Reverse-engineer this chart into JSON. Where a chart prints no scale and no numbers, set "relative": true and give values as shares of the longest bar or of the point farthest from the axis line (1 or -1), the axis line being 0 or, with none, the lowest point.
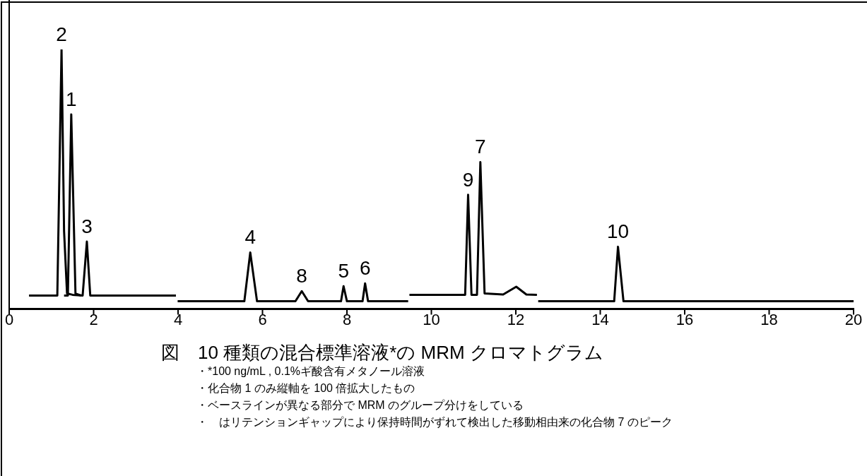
{
  "chart_data": {
    "type": "line",
    "title": "図　10 種類の混合標準溶液*の MRM クロマトグラム",
    "relative": true,
    "xlim": [
      0,
      20
    ],
    "xticks": [
      0,
      2,
      4,
      6,
      8,
      10,
      12,
      14,
      16,
      18,
      20
    ],
    "tick_labels": "x",
    "grid": false,
    "legend": false,
    "marker": "none",
    "line_style": "solid",
    "series": [
      {
        "color": "#000000",
        "x": [
          0.47,
          1.0,
          1.14,
          1.24,
          1.3,
          1.37,
          1.5,
          1.74,
          1.84,
          1.92,
          2.5,
          3.95
        ],
        "values": [
          0.052,
          0.052,
          0.052,
          1.0,
          0.3,
          0.06,
          0.055,
          0.052,
          0.26,
          0.052,
          0.052,
          0.052
        ]
      },
      {
        "color": "#000000",
        "x": [
          1.3,
          1.39,
          1.47,
          1.57,
          1.7
        ],
        "values": [
          0.052,
          0.052,
          0.75,
          0.06,
          0.052
        ]
      },
      {
        "color": "#000000",
        "x": [
          3.99,
          5.57,
          5.71,
          5.87,
          6.78,
          6.93,
          7.08,
          7.86,
          7.92,
          8.0,
          8.37,
          8.43,
          8.5,
          9.45
        ],
        "values": [
          0.03,
          0.03,
          0.218,
          0.03,
          0.03,
          0.069,
          0.03,
          0.03,
          0.088,
          0.03,
          0.03,
          0.099,
          0.03,
          0.03
        ]
      },
      {
        "color": "#000000",
        "x": [
          9.48,
          10.8,
          10.87,
          10.95,
          11.08,
          11.16,
          11.26,
          11.7,
          12.01,
          12.25,
          12.5
        ],
        "values": [
          0.055,
          0.055,
          0.44,
          0.055,
          0.055,
          0.566,
          0.06,
          0.056,
          0.086,
          0.056,
          0.055
        ]
      },
      {
        "color": "#000000",
        "x": [
          12.53,
          14.33,
          14.42,
          14.55,
          20
        ],
        "values": [
          0.03,
          0.03,
          0.24,
          0.03,
          0.03
        ]
      }
    ],
    "annotations": [
      {
        "text": "2",
        "x": 1.24,
        "y": 1.0
      },
      {
        "text": "1",
        "x": 1.47,
        "y": 0.75
      },
      {
        "text": "3",
        "x": 1.84,
        "y": 0.26
      },
      {
        "text": "4",
        "x": 5.71,
        "y": 0.218
      },
      {
        "text": "8",
        "x": 6.93,
        "y": 0.069
      },
      {
        "text": "5",
        "x": 7.92,
        "y": 0.088
      },
      {
        "text": "6",
        "x": 8.43,
        "y": 0.099
      },
      {
        "text": "9",
        "x": 10.87,
        "y": 0.44
      },
      {
        "text": "7",
        "x": 11.16,
        "y": 0.566
      },
      {
        "text": "10",
        "x": 14.42,
        "y": 0.24
      },
      "・*100 ng/mL , 0.1%ギ酸含有メタノール溶液",
      "・化合物 1 のみ縦軸を 100 倍拡大したもの",
      "・ベースラインが異なる部分で MRM のグループ分けをしている",
      "・　はリテンションギャップにより保持時間がずれて検出した移動相由来の化合物 7 のピーク"
    ]
  }
}
